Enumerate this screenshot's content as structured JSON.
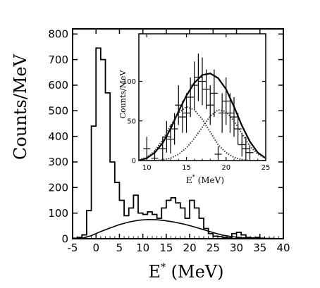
{
  "chart_data": [
    {
      "type": "line",
      "panel": "main",
      "xlabel": "E* (MeV)",
      "xlabel_base": "E",
      "xlabel_sup": "*",
      "xlabel_rest": " (MeV)",
      "ylabel": "Counts/MeV",
      "xlim": [
        -5,
        40
      ],
      "ylim": [
        0,
        820
      ],
      "x_ticks": [
        -5,
        0,
        5,
        10,
        15,
        20,
        25,
        30,
        35,
        40
      ],
      "y_ticks": [
        0,
        100,
        200,
        300,
        400,
        500,
        600,
        700,
        800
      ],
      "grid": false,
      "series": [
        {
          "kind": "histogram",
          "bin_width": 1,
          "x": [
            -5,
            -4,
            -3,
            -2,
            -1,
            0,
            1,
            2,
            3,
            4,
            5,
            6,
            7,
            8,
            9,
            10,
            11,
            12,
            13,
            14,
            15,
            16,
            17,
            18,
            19,
            20,
            21,
            22,
            23,
            24,
            25,
            26,
            27,
            28,
            29,
            30,
            31,
            32,
            33,
            34,
            35,
            36,
            37,
            38,
            39
          ],
          "values": [
            2,
            5,
            15,
            110,
            440,
            745,
            700,
            570,
            300,
            220,
            150,
            90,
            120,
            170,
            100,
            95,
            105,
            95,
            80,
            120,
            150,
            160,
            140,
            120,
            80,
            150,
            120,
            80,
            40,
            20,
            10,
            8,
            5,
            3,
            20,
            25,
            15,
            5,
            3,
            5,
            2,
            1,
            1,
            0,
            0
          ]
        },
        {
          "kind": "curve",
          "x": [
            -3,
            -1,
            1,
            3,
            5,
            7,
            9,
            11,
            13,
            15,
            17,
            19,
            21,
            23,
            25,
            27,
            29,
            31,
            33,
            35,
            37,
            39
          ],
          "values": [
            2,
            12,
            28,
            42,
            55,
            65,
            72,
            75,
            74,
            70,
            64,
            56,
            46,
            35,
            24,
            14,
            8,
            4,
            2,
            1,
            0,
            0
          ]
        }
      ]
    },
    {
      "type": "scatter",
      "panel": "inset",
      "xlabel": "E* (MeV)",
      "xlabel_base": "E",
      "xlabel_sup": "*",
      "xlabel_rest": " (MeV)",
      "ylabel": "Counts/MeV",
      "xlim": [
        9,
        25
      ],
      "ylim": [
        0,
        160
      ],
      "x_ticks": [
        10,
        15,
        20,
        25
      ],
      "y_ticks": [
        0,
        50,
        100
      ],
      "grid": false,
      "series": [
        {
          "kind": "points",
          "x": [
            10,
            11,
            12,
            12.5,
            13,
            13.5,
            14,
            14.5,
            15,
            15.5,
            16,
            16.5,
            17,
            17.5,
            18,
            18.5,
            19,
            19.5,
            20,
            20.5,
            21,
            21.5,
            22,
            22.5,
            23
          ],
          "values": [
            15,
            3,
            15,
            30,
            27,
            40,
            70,
            55,
            60,
            80,
            95,
            105,
            100,
            90,
            70,
            85,
            8,
            60,
            75,
            60,
            55,
            40,
            20,
            15,
            10
          ],
          "errors": [
            15,
            10,
            15,
            20,
            18,
            20,
            25,
            20,
            25,
            25,
            30,
            30,
            30,
            25,
            25,
            30,
            10,
            25,
            30,
            25,
            25,
            20,
            15,
            15,
            10
          ]
        },
        {
          "kind": "curve",
          "style": "solid",
          "x": [
            9,
            10,
            11,
            12,
            13,
            14,
            15,
            16,
            17,
            18,
            19,
            20,
            21,
            22,
            23,
            24,
            25
          ],
          "values": [
            0,
            3,
            10,
            22,
            40,
            62,
            82,
            98,
            108,
            110,
            104,
            90,
            68,
            44,
            24,
            10,
            3
          ]
        },
        {
          "kind": "curve",
          "style": "dotted",
          "x": [
            9,
            10,
            11,
            12,
            13,
            14,
            15,
            16,
            17,
            18,
            19,
            20,
            21,
            22,
            23,
            24,
            25
          ],
          "values": [
            1,
            4,
            12,
            26,
            44,
            60,
            68,
            64,
            52,
            36,
            20,
            10,
            4,
            1,
            0,
            0,
            0
          ]
        },
        {
          "kind": "curve",
          "style": "dotted",
          "x": [
            9,
            10,
            11,
            12,
            13,
            14,
            15,
            16,
            17,
            18,
            19,
            20,
            21,
            22,
            23,
            24,
            25
          ],
          "values": [
            0,
            0,
            0,
            1,
            3,
            8,
            16,
            28,
            42,
            56,
            64,
            62,
            50,
            34,
            18,
            8,
            3
          ]
        }
      ]
    }
  ]
}
